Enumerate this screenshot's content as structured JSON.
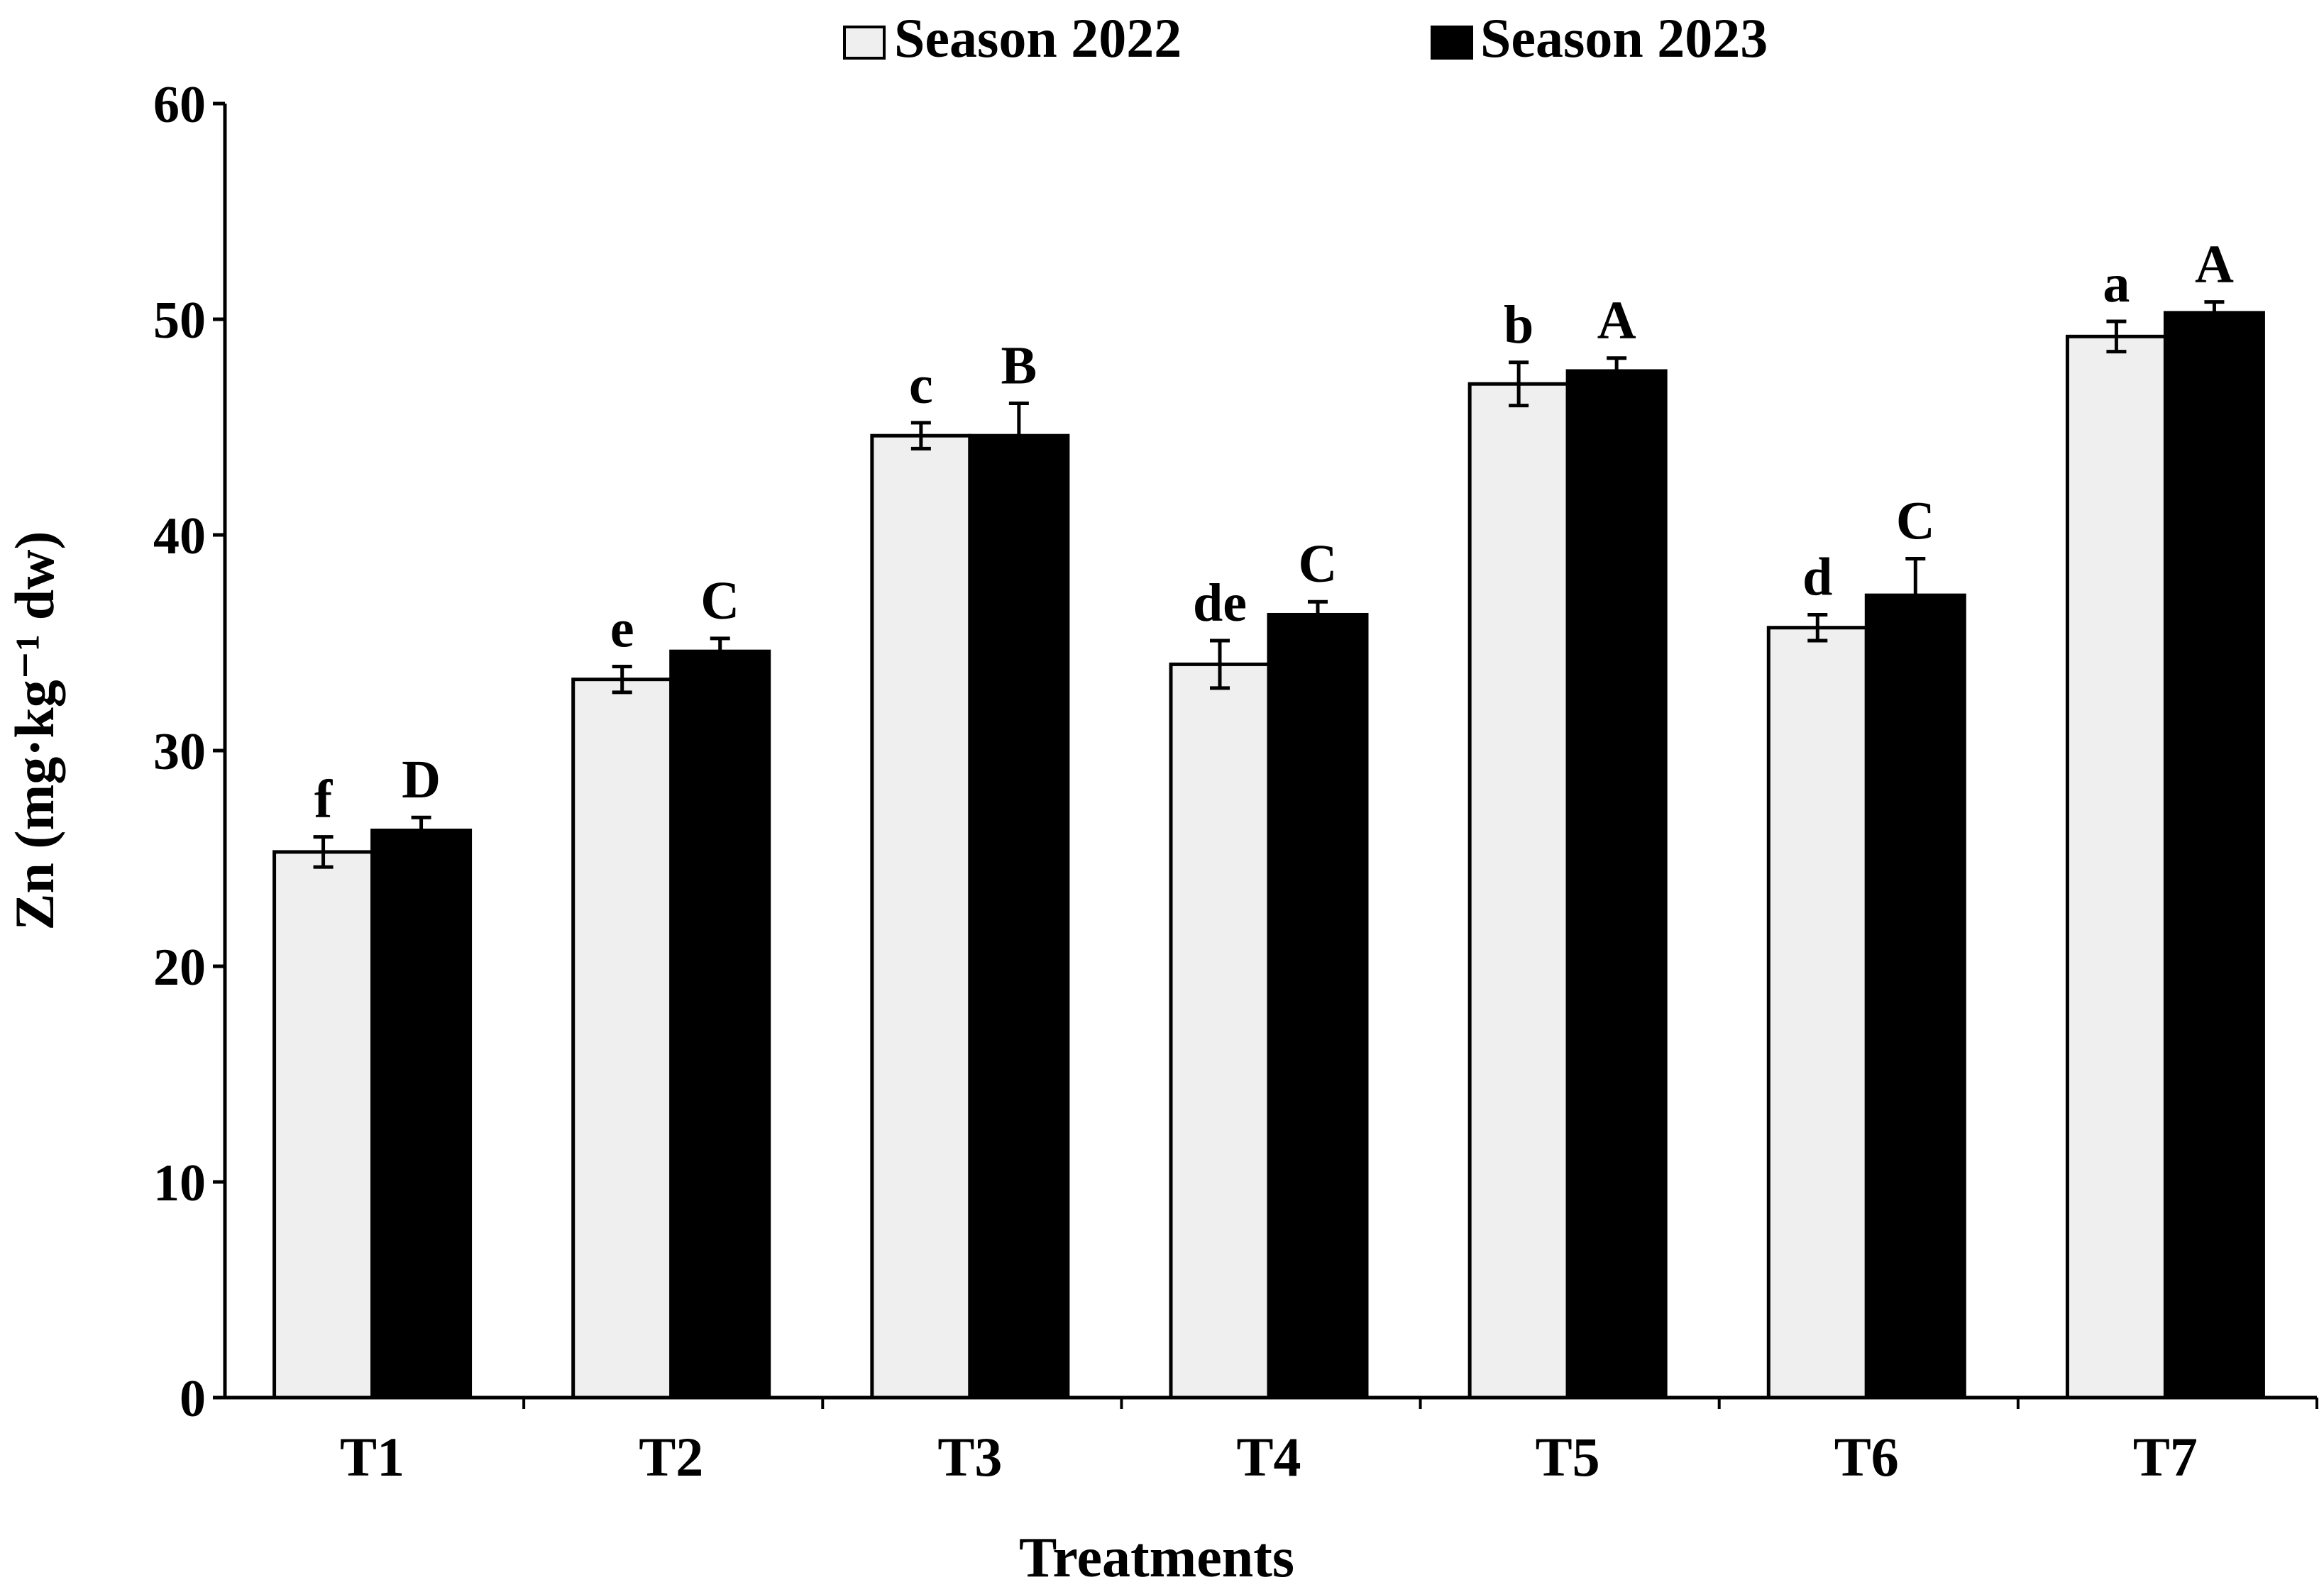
{
  "chart_data": {
    "type": "bar",
    "title": "",
    "xlabel": "Treatments",
    "ylabel": "Zn (mg·kg⁻¹ dw)",
    "ylim": [
      0,
      60
    ],
    "yticks": [
      0,
      10,
      20,
      30,
      40,
      50,
      60
    ],
    "grid": false,
    "legend_position": "top-center",
    "categories": [
      "T1",
      "T2",
      "T3",
      "T4",
      "T5",
      "T6",
      "T7"
    ],
    "series": [
      {
        "name": "Season 2022",
        "color": "#efefef",
        "values": [
          25.3,
          33.3,
          44.6,
          34.0,
          47.0,
          35.7,
          49.2
        ],
        "errors": [
          0.7,
          0.6,
          0.6,
          1.1,
          1.0,
          0.6,
          0.7
        ],
        "letters": [
          "f",
          "e",
          "c",
          "de",
          "b",
          "d",
          "a"
        ]
      },
      {
        "name": "Season 2023",
        "color": "#000000",
        "values": [
          26.3,
          34.6,
          44.6,
          36.3,
          47.6,
          37.2,
          50.3
        ],
        "errors": [
          0.6,
          0.6,
          1.5,
          0.6,
          0.6,
          1.7,
          0.5
        ],
        "letters": [
          "D",
          "C",
          "B",
          "C",
          "A",
          "C",
          "A"
        ]
      }
    ]
  }
}
